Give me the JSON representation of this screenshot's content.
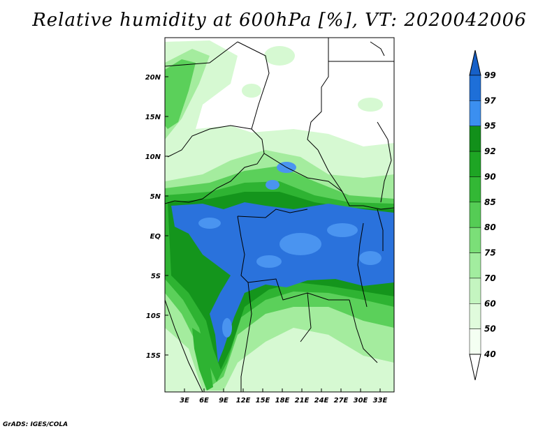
{
  "title": "Relative humidity at 600hPa [%], VT: 2020042006",
  "credit": "GrADS: IGES/COLA",
  "map": {
    "lat_labels": [
      "20N",
      "15N",
      "10N",
      "5N",
      "EQ",
      "5S",
      "10S",
      "15S"
    ],
    "lon_labels": [
      "3E",
      "6E",
      "9E",
      "12E",
      "15E",
      "18E",
      "21E",
      "24E",
      "27E",
      "30E",
      "33E"
    ]
  },
  "colorbar": {
    "labels": [
      "99",
      "97",
      "95",
      "92",
      "90",
      "85",
      "80",
      "75",
      "70",
      "60",
      "50",
      "40"
    ],
    "colors": [
      "#1660c8",
      "#1e6fd8",
      "#3b8ff0",
      "#12901a",
      "#1ea524",
      "#33b835",
      "#55cc55",
      "#7bdf78",
      "#a2ed9f",
      "#c4f5c0",
      "#e0fbdc",
      "#f4fff2"
    ]
  },
  "palette": {
    "blue": "#2a72dc",
    "blue_light": "#4a94f0",
    "green_dark": "#14951c",
    "green": "#2eb332",
    "green_mid": "#5bd05a",
    "green_light": "#a4ec9e",
    "green_pale": "#d6f9d2"
  }
}
